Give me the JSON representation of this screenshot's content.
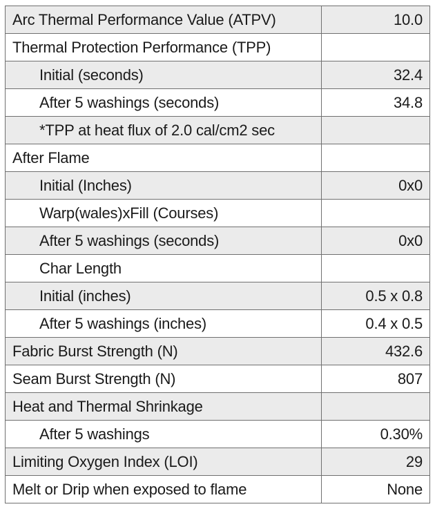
{
  "rows": [
    {
      "label": "Arc Thermal Performance Value (ATPV)",
      "value": "10.0",
      "indent": false
    },
    {
      "label": "Thermal Protection Performance (TPP)",
      "value": "",
      "indent": false
    },
    {
      "label": "Initial (seconds)",
      "value": "32.4",
      "indent": true
    },
    {
      "label": "After 5 washings (seconds)",
      "value": "34.8",
      "indent": true
    },
    {
      "label": "*TPP at heat flux of 2.0 cal/cm2 sec",
      "value": "",
      "indent": true
    },
    {
      "label": "After Flame",
      "value": "",
      "indent": false
    },
    {
      "label": "Initial (Inches)",
      "value": "0x0",
      "indent": true
    },
    {
      "label": "Warp(wales)xFill (Courses)",
      "value": "",
      "indent": true
    },
    {
      "label": "After 5 washings (seconds)",
      "value": "0x0",
      "indent": true
    },
    {
      "label": "Char Length",
      "value": "",
      "indent": true
    },
    {
      "label": "Initial (inches)",
      "value": "0.5 x 0.8",
      "indent": true
    },
    {
      "label": "After 5 washings (inches)",
      "value": "0.4 x 0.5",
      "indent": true
    },
    {
      "label": "Fabric Burst Strength (N)",
      "value": "432.6",
      "indent": false
    },
    {
      "label": "Seam Burst Strength (N)",
      "value": "807",
      "indent": false
    },
    {
      "label": "Heat and Thermal Shrinkage",
      "value": "",
      "indent": false
    },
    {
      "label": "After 5 washings",
      "value": "0.30%",
      "indent": true
    },
    {
      "label": "Limiting Oxygen Index (LOI)",
      "value": "29",
      "indent": false
    },
    {
      "label": "Melt or Drip when exposed to flame",
      "value": "None",
      "indent": false
    }
  ],
  "colors": {
    "shaded_row": "#ebebeb",
    "plain_row": "#ffffff",
    "border": "#6f6f6f",
    "text": "#1a1a1a"
  }
}
